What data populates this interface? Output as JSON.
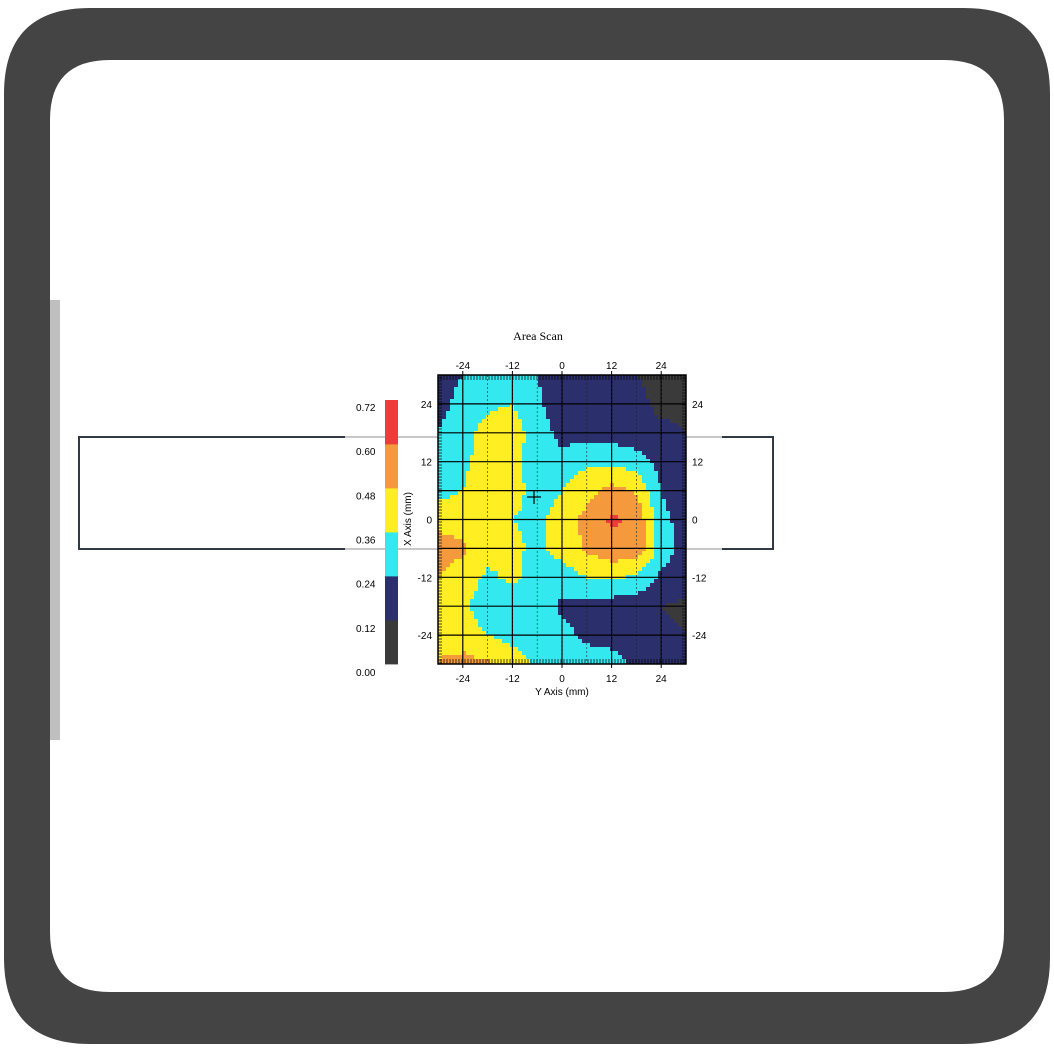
{
  "chart_data": {
    "type": "heatmap",
    "title": "Area Scan",
    "xlabel": "Y Axis (mm)",
    "ylabel": "X Axis (mm)",
    "xlim": [
      -30,
      30
    ],
    "ylim": [
      30,
      -30
    ],
    "x_ticks": [
      "-24",
      "-12",
      "0",
      "12",
      "24"
    ],
    "y_ticks": [
      "-24",
      "-12",
      "0",
      "12",
      "24"
    ],
    "grid": true,
    "colorbar": {
      "ticks": [
        "0.72",
        "0.60",
        "0.48",
        "0.36",
        "0.24",
        "0.12",
        "0.00"
      ],
      "levels": [
        0,
        0.12,
        0.24,
        0.36,
        0.48,
        0.6,
        0.72
      ],
      "colors": [
        "#3a3a3a",
        "#2b2f6b",
        "#33e8ee",
        "#ffee22",
        "#f49a3c",
        "#ee3b3b"
      ]
    },
    "x": [
      -30,
      -24,
      -18,
      -12,
      -6,
      0,
      6,
      12,
      18,
      24,
      30
    ],
    "y": [
      -30,
      -24,
      -18,
      -12,
      -6,
      0,
      6,
      12,
      18,
      24,
      30
    ],
    "z": [
      [
        0.5,
        0.52,
        0.5,
        0.42,
        0.34,
        0.32,
        0.32,
        0.3,
        0.2,
        0.18,
        0.16
      ],
      [
        0.4,
        0.42,
        0.36,
        0.32,
        0.3,
        0.28,
        0.2,
        0.18,
        0.16,
        0.14,
        0.12
      ],
      [
        0.44,
        0.38,
        0.3,
        0.3,
        0.3,
        0.22,
        0.2,
        0.18,
        0.16,
        0.12,
        0.1
      ],
      [
        0.48,
        0.42,
        0.34,
        0.38,
        0.32,
        0.3,
        0.36,
        0.38,
        0.34,
        0.22,
        0.16
      ],
      [
        0.54,
        0.5,
        0.4,
        0.38,
        0.34,
        0.4,
        0.5,
        0.56,
        0.58,
        0.3,
        0.2
      ],
      [
        0.44,
        0.42,
        0.38,
        0.36,
        0.34,
        0.4,
        0.52,
        0.62,
        0.58,
        0.28,
        0.18
      ],
      [
        0.32,
        0.36,
        0.42,
        0.4,
        0.32,
        0.36,
        0.44,
        0.52,
        0.46,
        0.24,
        0.14
      ],
      [
        0.28,
        0.34,
        0.4,
        0.4,
        0.3,
        0.28,
        0.34,
        0.34,
        0.3,
        0.2,
        0.14
      ],
      [
        0.24,
        0.32,
        0.4,
        0.42,
        0.3,
        0.2,
        0.2,
        0.18,
        0.16,
        0.14,
        0.12
      ],
      [
        0.2,
        0.28,
        0.34,
        0.36,
        0.26,
        0.18,
        0.18,
        0.16,
        0.14,
        0.1,
        0.1
      ],
      [
        0.18,
        0.24,
        0.28,
        0.3,
        0.24,
        0.16,
        0.14,
        0.14,
        0.12,
        0.1,
        0.08
      ]
    ]
  }
}
